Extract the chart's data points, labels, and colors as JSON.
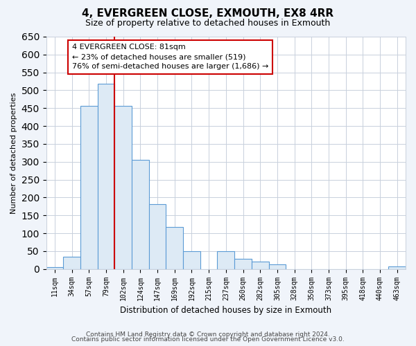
{
  "title": "4, EVERGREEN CLOSE, EXMOUTH, EX8 4RR",
  "subtitle": "Size of property relative to detached houses in Exmouth",
  "xlabel": "Distribution of detached houses by size in Exmouth",
  "ylabel": "Number of detached properties",
  "bin_labels": [
    "11sqm",
    "34sqm",
    "57sqm",
    "79sqm",
    "102sqm",
    "124sqm",
    "147sqm",
    "169sqm",
    "192sqm",
    "215sqm",
    "237sqm",
    "260sqm",
    "282sqm",
    "305sqm",
    "328sqm",
    "350sqm",
    "373sqm",
    "395sqm",
    "418sqm",
    "440sqm",
    "463sqm"
  ],
  "bar_values": [
    5,
    35,
    457,
    519,
    457,
    305,
    181,
    118,
    50,
    0,
    50,
    29,
    21,
    13,
    0,
    0,
    0,
    0,
    0,
    0,
    8
  ],
  "bar_color": "#ddeaf5",
  "bar_edge_color": "#5b9bd5",
  "highlight_line_index": 3,
  "highlight_line_color": "#cc0000",
  "annotation_text_line1": "4 EVERGREEN CLOSE: 81sqm",
  "annotation_text_line2": "← 23% of detached houses are smaller (519)",
  "annotation_text_line3": "76% of semi-detached houses are larger (1,686) →",
  "annotation_box_color": "#ffffff",
  "annotation_box_edge": "#cc0000",
  "ylim": [
    0,
    650
  ],
  "yticks": [
    0,
    50,
    100,
    150,
    200,
    250,
    300,
    350,
    400,
    450,
    500,
    550,
    600,
    650
  ],
  "footer_line1": "Contains HM Land Registry data © Crown copyright and database right 2024.",
  "footer_line2": "Contains public sector information licensed under the Open Government Licence v3.0.",
  "bg_color": "#f0f4fa",
  "plot_bg_color": "#ffffff",
  "grid_color": "#c8d0dc"
}
